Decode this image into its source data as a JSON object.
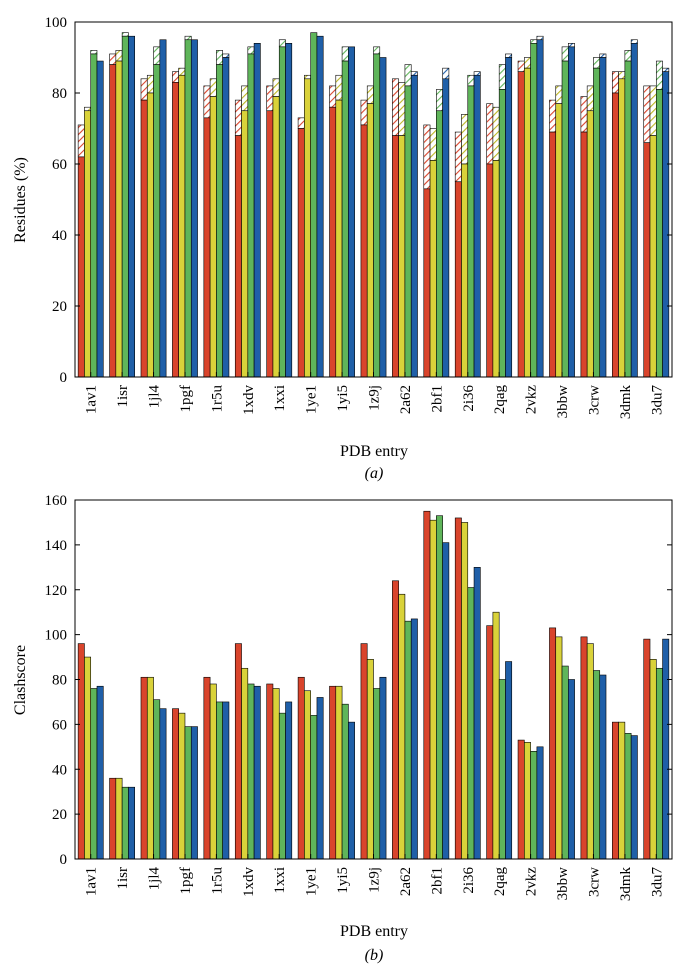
{
  "colors": {
    "red": "#d9442c",
    "yellow": "#d9d23a",
    "green": "#5fb55a",
    "blue": "#1f5fa8",
    "hatch_red": "#e79a95",
    "hatch_yellow": "#e8e49a",
    "hatch_green": "#a9d7a4",
    "hatch_blue": "#8fb3dc"
  },
  "chart_data": [
    {
      "type": "bar",
      "panel_label": "(a)",
      "xlabel": "PDB entry",
      "ylabel": "Residues (%)",
      "ylim": [
        0,
        100
      ],
      "yticks": [
        0,
        20,
        40,
        60,
        80,
        100
      ],
      "categories": [
        "1av1",
        "1isr",
        "1jl4",
        "1pgf",
        "1r5u",
        "1xdv",
        "1xxi",
        "1ye1",
        "1yi5",
        "1z9j",
        "2a62",
        "2bf1",
        "2i36",
        "2qag",
        "2vkz",
        "3bbw",
        "3crw",
        "3dmk",
        "3du7"
      ],
      "series": [
        {
          "solid": [
            62,
            88,
            78,
            83,
            73,
            68,
            75,
            70,
            76,
            71,
            68,
            53,
            55,
            60,
            86,
            69,
            69,
            80,
            66
          ],
          "top": [
            71,
            91,
            84,
            86,
            82,
            78,
            82,
            73,
            82,
            78,
            84,
            71,
            69,
            77,
            89,
            78,
            79,
            86,
            82
          ]
        },
        {
          "solid": [
            75,
            89,
            80,
            85,
            79,
            75,
            79,
            84,
            78,
            77,
            68,
            61,
            60,
            61,
            87,
            77,
            75,
            84,
            68
          ],
          "top": [
            76,
            92,
            85,
            87,
            84,
            82,
            84,
            85,
            85,
            82,
            83,
            70,
            74,
            76,
            90,
            82,
            82,
            86,
            82
          ]
        },
        {
          "solid": [
            91,
            96,
            88,
            95,
            88,
            91,
            93,
            97,
            89,
            91,
            82,
            75,
            82,
            81,
            94,
            89,
            87,
            89,
            81
          ],
          "top": [
            92,
            97,
            93,
            96,
            92,
            93,
            95,
            97,
            93,
            93,
            88,
            81,
            85,
            88,
            95,
            93,
            90,
            92,
            89
          ]
        },
        {
          "solid": [
            89,
            96,
            95,
            95,
            90,
            94,
            94,
            96,
            93,
            90,
            85,
            84,
            85,
            90,
            95,
            93,
            90,
            94,
            86
          ],
          "top": [
            89,
            96,
            95,
            95,
            91,
            94,
            94,
            96,
            93,
            90,
            86,
            87,
            86,
            91,
            96,
            94,
            91,
            95,
            87
          ]
        }
      ]
    },
    {
      "type": "bar",
      "panel_label": "(b)",
      "xlabel": "PDB entry",
      "ylabel": "Clashscore",
      "ylim": [
        0,
        160
      ],
      "yticks": [
        0,
        20,
        40,
        60,
        80,
        100,
        120,
        140,
        160
      ],
      "categories": [
        "1av1",
        "1isr",
        "1jl4",
        "1pgf",
        "1r5u",
        "1xdv",
        "1xxi",
        "1ye1",
        "1yi5",
        "1z9j",
        "2a62",
        "2bf1",
        "2i36",
        "2qag",
        "2vkz",
        "3bbw",
        "3crw",
        "3dmk",
        "3du7"
      ],
      "series": [
        {
          "values": [
            96,
            36,
            81,
            67,
            81,
            96,
            78,
            81,
            77,
            96,
            124,
            155,
            152,
            104,
            53,
            103,
            99,
            61,
            98
          ]
        },
        {
          "values": [
            90,
            36,
            81,
            65,
            78,
            85,
            76,
            75,
            77,
            89,
            118,
            151,
            150,
            110,
            52,
            99,
            96,
            61,
            89
          ]
        },
        {
          "values": [
            76,
            32,
            71,
            59,
            70,
            78,
            65,
            64,
            69,
            76,
            106,
            153,
            121,
            80,
            48,
            86,
            84,
            56,
            85
          ]
        },
        {
          "values": [
            77,
            32,
            67,
            59,
            70,
            77,
            70,
            72,
            61,
            81,
            107,
            141,
            130,
            88,
            50,
            80,
            82,
            55,
            98
          ]
        }
      ]
    }
  ]
}
